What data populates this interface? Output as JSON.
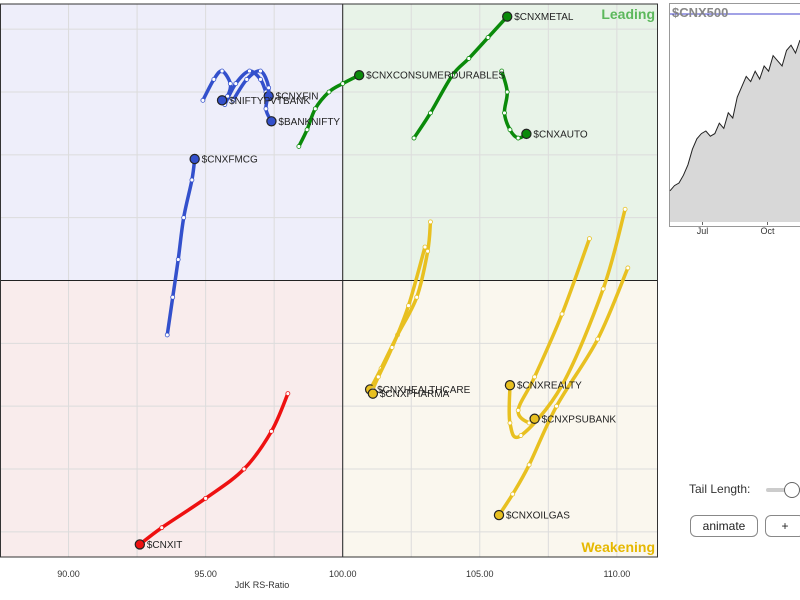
{
  "chart_data": [
    {
      "type": "scatter",
      "xlabel": "JdK RS-Ratio",
      "xlim": [
        87.5,
        111.5
      ],
      "ylim": [
        93.4,
        106.6
      ],
      "x_ticks": [
        "90.00",
        "95.00",
        "100.00",
        "105.00",
        "110.00"
      ],
      "quadrant_labels": {
        "top_right": "Leading",
        "bottom_right": "Weakening"
      },
      "quadrant_colors": {
        "top_left": "#eeeefa",
        "top_right": "#e8f3e8",
        "bottom_left": "#f9ecec",
        "bottom_right": "#faf7ee"
      },
      "series": [
        {
          "name": "$CNXMETAL",
          "color": "#0a8a0a",
          "points": [
            [
              102.6,
              103.4
            ],
            [
              103.2,
              104.0
            ],
            [
              104.0,
              104.9
            ],
            [
              104.6,
              105.3
            ],
            [
              105.3,
              105.8
            ],
            [
              106.0,
              106.3
            ]
          ]
        },
        {
          "name": "$CNXCONSUMERDURABLES",
          "color": "#0a8a0a",
          "points": [
            [
              98.4,
              103.2
            ],
            [
              98.7,
              103.6
            ],
            [
              99.0,
              104.1
            ],
            [
              99.5,
              104.5
            ],
            [
              100.0,
              104.7
            ],
            [
              100.6,
              104.9
            ]
          ]
        },
        {
          "name": "$CNXAUTO",
          "color": "#0a8a0a",
          "points": [
            [
              105.8,
              105.0
            ],
            [
              106.0,
              104.5
            ],
            [
              105.9,
              104.0
            ],
            [
              106.1,
              103.6
            ],
            [
              106.4,
              103.4
            ],
            [
              106.7,
              103.5
            ]
          ]
        },
        {
          "name": "$CNXFIN",
          "color": "#3350cc",
          "points": [
            [
              95.7,
              104.2
            ],
            [
              96.1,
              104.7
            ],
            [
              96.6,
              105.0
            ],
            [
              97.0,
              104.8
            ],
            [
              97.2,
              104.5
            ],
            [
              97.3,
              104.4
            ]
          ]
        },
        {
          "name": "$NIFTYPVTBANK",
          "color": "#3350cc",
          "points": [
            [
              94.9,
              104.3
            ],
            [
              95.3,
              104.8
            ],
            [
              95.6,
              105.0
            ],
            [
              95.9,
              104.7
            ],
            [
              95.8,
              104.4
            ],
            [
              95.6,
              104.3
            ]
          ]
        },
        {
          "name": "$BANKNIFTY",
          "color": "#3350cc",
          "points": [
            [
              96.0,
              104.3
            ],
            [
              96.5,
              104.8
            ],
            [
              97.0,
              105.0
            ],
            [
              97.3,
              104.6
            ],
            [
              97.2,
              104.1
            ],
            [
              97.4,
              103.8
            ]
          ]
        },
        {
          "name": "$CNXFMCG",
          "color": "#3350cc",
          "points": [
            [
              93.6,
              98.7
            ],
            [
              93.8,
              99.6
            ],
            [
              94.0,
              100.5
            ],
            [
              94.2,
              101.5
            ],
            [
              94.5,
              102.4
            ],
            [
              94.6,
              102.9
            ]
          ]
        },
        {
          "name": "$CNXHEALTHCARE",
          "color": "#e8c020",
          "points": [
            [
              103.2,
              101.4
            ],
            [
              103.1,
              100.7
            ],
            [
              102.7,
              99.6
            ],
            [
              102.0,
              98.7
            ],
            [
              101.4,
              97.9
            ],
            [
              101.0,
              97.4
            ]
          ]
        },
        {
          "name": "$CNXPHARMA",
          "color": "#e8c020",
          "points": [
            [
              103.0,
              100.8
            ],
            [
              102.4,
              99.4
            ],
            [
              101.8,
              98.4
            ],
            [
              101.3,
              97.7
            ],
            [
              101.1,
              97.4
            ],
            [
              101.1,
              97.3
            ]
          ]
        },
        {
          "name": "$CNXREALTY",
          "color": "#e8c020",
          "points": [
            [
              110.3,
              101.7
            ],
            [
              109.5,
              99.8
            ],
            [
              108.0,
              97.5
            ],
            [
              106.5,
              96.3
            ],
            [
              106.1,
              96.6
            ],
            [
              106.1,
              97.5
            ]
          ]
        },
        {
          "name": "$CNXPSUBANK",
          "color": "#e8c020",
          "points": [
            [
              109.0,
              101.0
            ],
            [
              108.0,
              99.2
            ],
            [
              107.0,
              97.7
            ],
            [
              106.4,
              96.9
            ],
            [
              106.8,
              96.6
            ],
            [
              107.0,
              96.7
            ]
          ]
        },
        {
          "name": "$CNXOILGAS",
          "color": "#e8c020",
          "points": [
            [
              110.4,
              100.3
            ],
            [
              109.3,
              98.6
            ],
            [
              107.8,
              97.0
            ],
            [
              106.8,
              95.6
            ],
            [
              106.2,
              94.9
            ],
            [
              105.7,
              94.4
            ]
          ]
        },
        {
          "name": "$CNXIT",
          "color": "#ee1111",
          "points": [
            [
              98.0,
              97.3
            ],
            [
              97.4,
              96.4
            ],
            [
              96.4,
              95.5
            ],
            [
              95.0,
              94.8
            ],
            [
              93.4,
              94.1
            ],
            [
              92.6,
              93.7
            ]
          ]
        }
      ]
    },
    {
      "type": "area",
      "title": "$CNX500",
      "x_ticks": [
        "Jul",
        "Oct"
      ],
      "values": [
        42,
        44,
        45,
        48,
        52,
        58,
        62,
        64,
        65,
        63,
        64,
        68,
        66,
        72,
        70,
        78,
        82,
        86,
        84,
        88,
        85,
        90,
        88,
        94,
        92,
        90,
        96,
        98,
        95,
        100
      ],
      "ylim": [
        30,
        110
      ],
      "fill": "#d8d8d8",
      "line": "#222222",
      "reference_line_color": "#4444cc"
    }
  ],
  "controls": {
    "tail_length_label": "Tail Length:",
    "animate_label": "animate",
    "plus_label": "+"
  }
}
